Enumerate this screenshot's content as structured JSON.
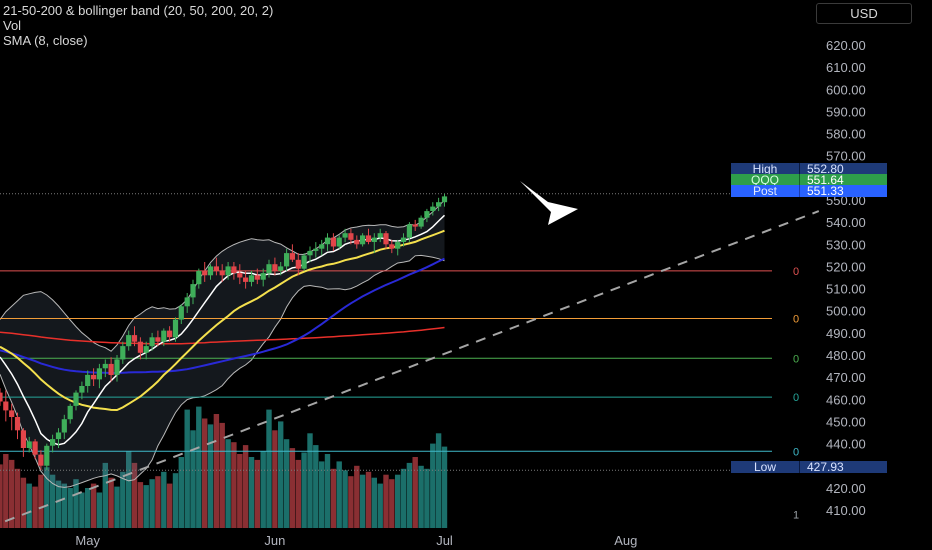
{
  "legend": {
    "indicator": "21-50-200 & bollinger band (20, 50, 200, 20, 2)",
    "volume": "Vol",
    "sma": "SMA (8, close)"
  },
  "currency_label": "USD",
  "price_tags": {
    "high": {
      "label": "High",
      "value": "552.80",
      "color": "#1e3a78"
    },
    "symbol": {
      "label": "QQQ",
      "value": "551.64",
      "color": "#2e9e4a"
    },
    "post": {
      "label": "Post",
      "value": "551.33",
      "color": "#2962ff"
    },
    "low": {
      "label": "Low",
      "value": "427.93",
      "color": "#1e3a78"
    }
  },
  "level_labels": [
    "0",
    "0",
    "0",
    "0",
    "0",
    "1"
  ],
  "colors": {
    "up": "#3fae5a",
    "down": "#e2454a",
    "vol_up": "#1b6f6a",
    "vol_down": "#8a2f33",
    "sma8": "#ffffff",
    "ma21": "#f4e04d",
    "ma50": "#2929d6",
    "ma200": "#e8302a",
    "band": "#b8b8b8",
    "fib_red": "#e05252",
    "fib_orange": "#f29d38",
    "fib_green": "#4caf50",
    "fib_teal": "#26a69a",
    "fib_cyan": "#3fb9c9"
  },
  "chart_data": {
    "type": "candlestick",
    "title": "21-50-200 & bollinger band (20, 50, 200, 20, 2)",
    "symbol": "QQQ",
    "currency": "USD",
    "x_labels": [
      "May",
      "Jun",
      "Jul",
      "Aug"
    ],
    "y_ticks": [
      "410.00",
      "420.00",
      "430.00",
      "440.00",
      "450.00",
      "460.00",
      "470.00",
      "480.00",
      "490.00",
      "500.00",
      "510.00",
      "520.00",
      "530.00",
      "540.00",
      "550.00",
      "560.00",
      "570.00",
      "580.00",
      "590.00",
      "600.00",
      "610.00",
      "620.00"
    ],
    "y_range": [
      405,
      625
    ],
    "x_range": [
      0,
      132
    ],
    "x_label_index": [
      15,
      47,
      76,
      107
    ],
    "candles": [
      [
        463,
        465,
        457,
        459
      ],
      [
        459,
        464,
        450,
        455
      ],
      [
        455,
        458,
        446,
        452
      ],
      [
        452,
        454,
        442,
        446
      ],
      [
        446,
        447,
        434,
        438
      ],
      [
        438,
        443,
        436,
        441
      ],
      [
        441,
        442,
        433,
        435
      ],
      [
        435,
        437,
        428,
        430
      ],
      [
        430,
        440,
        428,
        439
      ],
      [
        439,
        444,
        436,
        442
      ],
      [
        442,
        447,
        438,
        445
      ],
      [
        445,
        453,
        442,
        451
      ],
      [
        451,
        458,
        449,
        457
      ],
      [
        457,
        464,
        455,
        463
      ],
      [
        463,
        468,
        460,
        466
      ],
      [
        466,
        473,
        463,
        471
      ],
      [
        471,
        474,
        466,
        469
      ],
      [
        469,
        476,
        465,
        474
      ],
      [
        474,
        478,
        470,
        476
      ],
      [
        476,
        479,
        468,
        471
      ],
      [
        471,
        480,
        468,
        478
      ],
      [
        478,
        486,
        476,
        484
      ],
      [
        484,
        491,
        482,
        489
      ],
      [
        489,
        493,
        484,
        486
      ],
      [
        486,
        488,
        478,
        481
      ],
      [
        481,
        486,
        478,
        484
      ],
      [
        484,
        490,
        482,
        488
      ],
      [
        488,
        491,
        484,
        486
      ],
      [
        486,
        492,
        484,
        491
      ],
      [
        491,
        493,
        486,
        488
      ],
      [
        488,
        497,
        486,
        496
      ],
      [
        496,
        503,
        494,
        502
      ],
      [
        502,
        508,
        499,
        506
      ],
      [
        506,
        514,
        503,
        512
      ],
      [
        512,
        519,
        510,
        518
      ],
      [
        518,
        522,
        513,
        516
      ],
      [
        516,
        521,
        514,
        520
      ],
      [
        520,
        524,
        516,
        518
      ],
      [
        518,
        521,
        513,
        516
      ],
      [
        516,
        522,
        514,
        520
      ],
      [
        520,
        522,
        514,
        517
      ],
      [
        517,
        521,
        512,
        515
      ],
      [
        515,
        518,
        510,
        513
      ],
      [
        513,
        518,
        511,
        516
      ],
      [
        516,
        519,
        512,
        514
      ],
      [
        514,
        519,
        511,
        517
      ],
      [
        517,
        523,
        515,
        521
      ],
      [
        521,
        524,
        516,
        518
      ],
      [
        518,
        522,
        516,
        520
      ],
      [
        520,
        528,
        518,
        526
      ],
      [
        526,
        530,
        522,
        523
      ],
      [
        523,
        526,
        516,
        519
      ],
      [
        519,
        526,
        518,
        525
      ],
      [
        525,
        529,
        522,
        527
      ],
      [
        527,
        531,
        524,
        528
      ],
      [
        528,
        532,
        525,
        530
      ],
      [
        530,
        535,
        527,
        533
      ],
      [
        533,
        535,
        527,
        529
      ],
      [
        529,
        534,
        528,
        533
      ],
      [
        533,
        537,
        531,
        535
      ],
      [
        535,
        537,
        530,
        532
      ],
      [
        532,
        534,
        528,
        530
      ],
      [
        530,
        535,
        529,
        534
      ],
      [
        534,
        537,
        530,
        531
      ],
      [
        531,
        535,
        526,
        533
      ],
      [
        533,
        537,
        531,
        535
      ],
      [
        535,
        536,
        528,
        530
      ],
      [
        530,
        532,
        526,
        528
      ],
      [
        528,
        532,
        525,
        531
      ],
      [
        531,
        535,
        529,
        533
      ],
      [
        533,
        540,
        531,
        539
      ],
      [
        539,
        541,
        536,
        538
      ],
      [
        538,
        543,
        537,
        542
      ],
      [
        542,
        546,
        540,
        545
      ],
      [
        545,
        549,
        543,
        547
      ],
      [
        547,
        551,
        545,
        549
      ],
      [
        549,
        552.8,
        547,
        551.64
      ]
    ],
    "volume": [
      0.43,
      0.5,
      0.46,
      0.4,
      0.34,
      0.3,
      0.28,
      0.36,
      0.41,
      0.36,
      0.32,
      0.3,
      0.27,
      0.33,
      0.24,
      0.27,
      0.3,
      0.24,
      0.44,
      0.34,
      0.28,
      0.38,
      0.52,
      0.44,
      0.31,
      0.29,
      0.33,
      0.35,
      0.38,
      0.3,
      0.37,
      0.48,
      0.8,
      0.66,
      0.82,
      0.74,
      0.7,
      0.77,
      0.71,
      0.6,
      0.58,
      0.5,
      0.56,
      0.48,
      0.46,
      0.52,
      0.8,
      0.66,
      0.72,
      0.6,
      0.54,
      0.46,
      0.51,
      0.64,
      0.56,
      0.45,
      0.5,
      0.4,
      0.45,
      0.39,
      0.35,
      0.42,
      0.36,
      0.38,
      0.34,
      0.3,
      0.36,
      0.33,
      0.36,
      0.4,
      0.44,
      0.48,
      0.42,
      0.4,
      0.57,
      0.64,
      0.55
    ],
    "fib_levels": [
      {
        "value": 518,
        "color_key": "fib_red"
      },
      {
        "value": 496.5,
        "color_key": "fib_orange"
      },
      {
        "value": 478.5,
        "color_key": "fib_green"
      },
      {
        "value": 461,
        "color_key": "fib_teal"
      },
      {
        "value": 436.5,
        "color_key": "fib_cyan"
      }
    ],
    "trendline": {
      "from": [
        -2,
        402
      ],
      "to": [
        140,
        545
      ]
    },
    "session_high": 552.8,
    "session_low": 427.93
  }
}
